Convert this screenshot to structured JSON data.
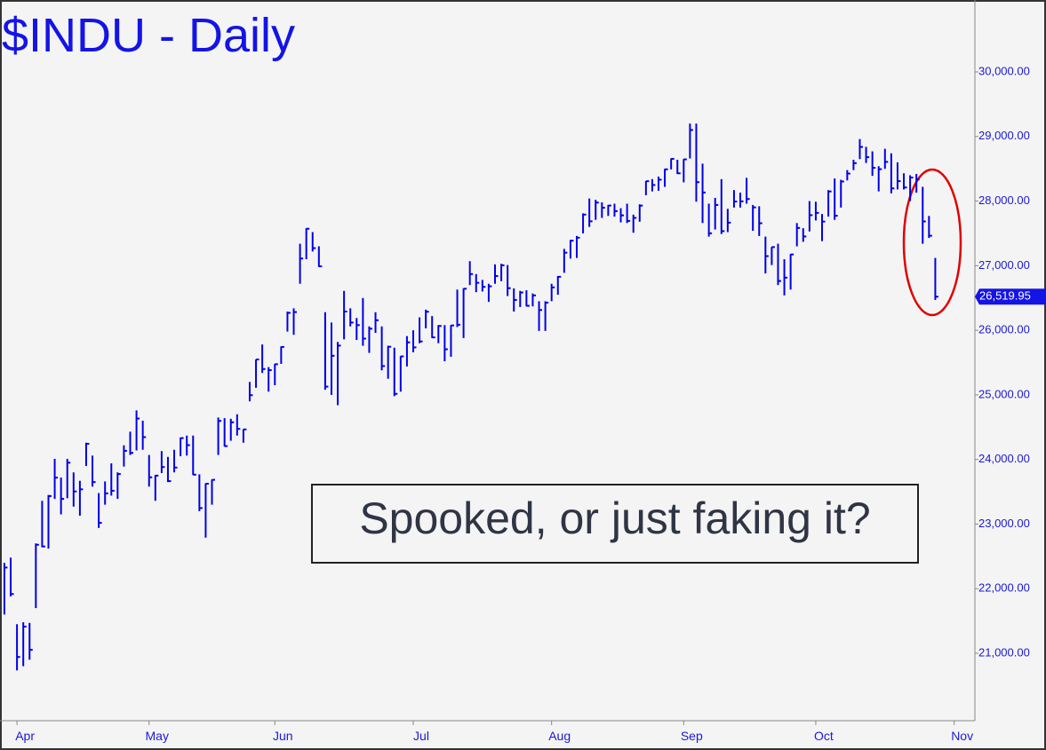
{
  "chart_data": {
    "type": "ohlc",
    "title": "$INDU - Daily",
    "annotation": "Spooked, or just faking it?",
    "color": "#0000e6",
    "xlim": [
      -0.7,
      154.3
    ],
    "ylim": [
      19956,
      31113
    ],
    "xticks": [
      {
        "value": 2,
        "label": "Apr"
      },
      {
        "value": 23,
        "label": "May"
      },
      {
        "value": 43,
        "label": "Jun"
      },
      {
        "value": 65,
        "label": "Jul"
      },
      {
        "value": 87,
        "label": "Aug"
      },
      {
        "value": 108,
        "label": "Sep"
      },
      {
        "value": 129,
        "label": "Oct"
      },
      {
        "value": 151,
        "label": "Nov"
      }
    ],
    "yticks": [
      {
        "value": 21000,
        "label": "21,000.00"
      },
      {
        "value": 22000,
        "label": "22,000.00"
      },
      {
        "value": 23000,
        "label": "23,000.00"
      },
      {
        "value": 24000,
        "label": "24,000.00"
      },
      {
        "value": 25000,
        "label": "25,000.00"
      },
      {
        "value": 26000,
        "label": "26,000.00"
      },
      {
        "value": 27000,
        "label": "27,000.00"
      },
      {
        "value": 28000,
        "label": "28,000.00"
      },
      {
        "value": 29000,
        "label": "29,000.00"
      },
      {
        "value": 30000,
        "label": "30,000.00"
      }
    ],
    "last_price": {
      "value": 26519.95,
      "label": "26,519.95"
    },
    "high": [
      22400,
      22480,
      21450,
      21480,
      21470,
      22700,
      23360,
      23450,
      24010,
      23720,
      24010,
      23800,
      23670,
      24260,
      24060,
      23480,
      23660,
      23940,
      23800,
      24220,
      24430,
      24760,
      24600,
      24070,
      23760,
      24130,
      24040,
      24150,
      24340,
      24370,
      24370,
      23770,
      23630,
      23690,
      24650,
      24640,
      24630,
      24700,
      24470,
      25200,
      25550,
      25780,
      25430,
      25480,
      25750,
      26290,
      26340,
      27340,
      27580,
      27520,
      27300,
      26280,
      26120,
      25820,
      26610,
      26340,
      26190,
      26500,
      26060,
      26280,
      26060,
      25760,
      25730,
      25600,
      25910,
      26000,
      26200,
      26320,
      26220,
      26080,
      26080,
      26080,
      26630,
      26650,
      27070,
      26870,
      26780,
      26720,
      27020,
      27030,
      27010,
      26650,
      26610,
      26620,
      26570,
      26450,
      26450,
      26720,
      26840,
      27260,
      27400,
      27460,
      27810,
      28040,
      28020,
      27980,
      27940,
      27960,
      27890,
      27960,
      27790,
      27950,
      28310,
      28340,
      28380,
      28500,
      28660,
      28640,
      28650,
      29200,
      29200,
      28580,
      27960,
      28050,
      28340,
      27880,
      28170,
      28130,
      28360,
      27940,
      27920,
      27450,
      27290,
      27340,
      27100,
      27180,
      27660,
      27580,
      28000,
      27990,
      27800,
      28170,
      28350,
      28330,
      28480,
      28640,
      28960,
      28840,
      28770,
      28540,
      28810,
      28740,
      28600,
      28430,
      28400,
      28420,
      28220,
      27770,
      27120
    ],
    "low": [
      21600,
      21880,
      20735,
      20800,
      20900,
      21700,
      22640,
      22620,
      23390,
      23150,
      23400,
      23270,
      23130,
      23900,
      23580,
      22940,
      23300,
      23440,
      23390,
      23890,
      24070,
      24140,
      24150,
      23580,
      23360,
      23790,
      23650,
      23800,
      24050,
      24060,
      23760,
      23200,
      22790,
      23300,
      24070,
      24200,
      24290,
      24370,
      24260,
      24900,
      25110,
      25340,
      25050,
      25150,
      25480,
      25980,
      25930,
      26720,
      27100,
      27220,
      26980,
      25080,
      25000,
      24840,
      25860,
      26060,
      25850,
      25760,
      25650,
      25960,
      25380,
      25250,
      24980,
      25050,
      25440,
      25660,
      25800,
      26030,
      25880,
      25800,
      25520,
      25590,
      26050,
      25880,
      26700,
      26590,
      26600,
      26440,
      26720,
      26760,
      26530,
      26290,
      26360,
      26370,
      26370,
      25990,
      25990,
      26450,
      26550,
      26890,
      27110,
      27120,
      27500,
      27600,
      27710,
      27740,
      27770,
      27760,
      27670,
      27660,
      27510,
      27680,
      28090,
      28150,
      28160,
      28220,
      28490,
      28420,
      28290,
      28660,
      27990,
      27660,
      27450,
      27560,
      27490,
      27520,
      27900,
      27900,
      27960,
      27540,
      27460,
      26880,
      27010,
      26700,
      26540,
      26630,
      27300,
      27370,
      27530,
      27700,
      27380,
      27760,
      27710,
      27900,
      28320,
      28480,
      28650,
      28590,
      28390,
      28150,
      28500,
      28120,
      28180,
      28180,
      28000,
      28130,
      27340,
      27430,
      26470
    ],
    "close": [
      22327,
      21917,
      20943,
      21413,
      21053,
      22680,
      22654,
      23434,
      23719,
      23390,
      23950,
      23505,
      23538,
      24242,
      23650,
      23019,
      23475,
      23516,
      23775,
      24134,
      24102,
      24634,
      24346,
      23724,
      23750,
      23883,
      23665,
      23875,
      24331,
      24222,
      23765,
      23248,
      23625,
      23685,
      24597,
      24207,
      24576,
      24474,
      24465,
      24995,
      25548,
      25400,
      25383,
      25475,
      25742,
      26270,
      26282,
      27111,
      27572,
      27272,
      26990,
      25128,
      25605,
      25763,
      26290,
      26120,
      26080,
      25871,
      26025,
      26156,
      25446,
      25745,
      25016,
      25596,
      25813,
      25735,
      25827,
      26287,
      25890,
      26067,
      25706,
      26075,
      26086,
      26643,
      26870,
      26735,
      26672,
      26681,
      26840,
      27006,
      26652,
      26470,
      26585,
      26379,
      26540,
      26314,
      26428,
      26664,
      26828,
      27201,
      27387,
      27433,
      27791,
      27687,
      27977,
      27897,
      27931,
      27845,
      27779,
      27693,
      27740,
      27930,
      28308,
      28249,
      28332,
      28492,
      28654,
      28430,
      28646,
      29100,
      28293,
      28133,
      27501,
      27940,
      27535,
      27666,
      27993,
      27996,
      28032,
      27902,
      27657,
      27148,
      27288,
      26763,
      26815,
      27174,
      27584,
      27452,
      27782,
      27817,
      27683,
      28149,
      27773,
      28303,
      28426,
      28587,
      28838,
      28680,
      28515,
      28494,
      28607,
      28196,
      28309,
      28211,
      28364,
      28336,
      27685,
      27464,
      26519.95
    ]
  }
}
